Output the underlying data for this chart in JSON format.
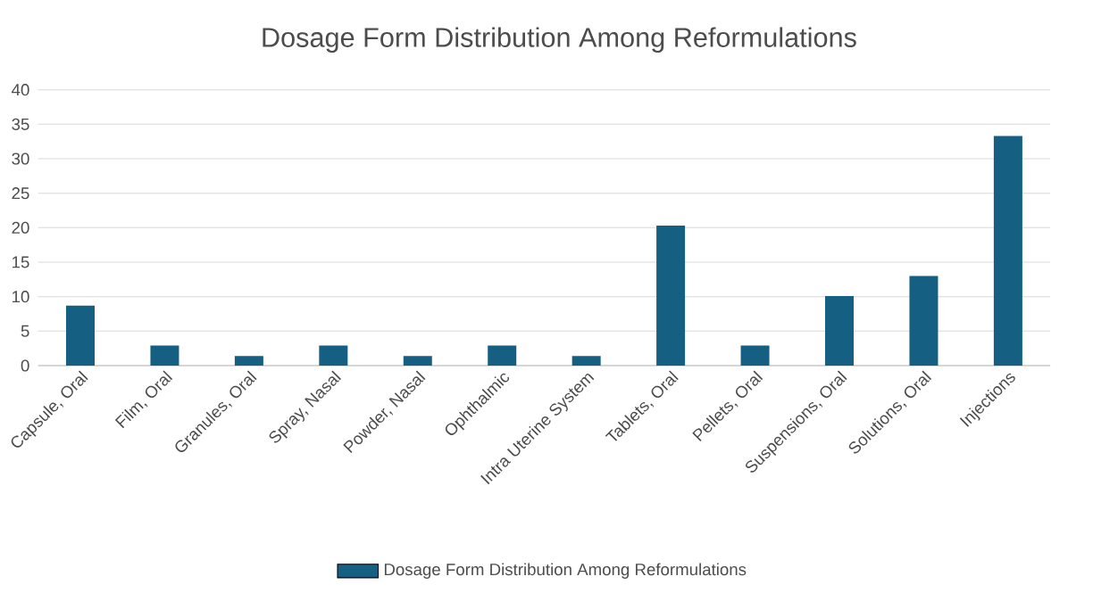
{
  "chart_data": {
    "type": "bar",
    "title": "Dosage Form Distribution Among Reformulations",
    "categories": [
      "Capsule, Oral",
      "Film, Oral",
      "Granules, Oral",
      "Spray, Nasal",
      "Powder, Nasal",
      "Ophthalmic",
      "Intra Uterine System",
      "Tablets, Oral",
      "Pellets, Oral",
      "Suspensions, Oral",
      "Solutions, Oral",
      "Injections"
    ],
    "series": [
      {
        "name": "Dosage Form Distribution Among Reformulations",
        "color": "#156082",
        "values": [
          8.7,
          2.9,
          1.4,
          2.9,
          1.4,
          2.9,
          1.4,
          20.3,
          2.9,
          10.1,
          13.0,
          33.3
        ]
      }
    ],
    "ylim": [
      0,
      40
    ],
    "yticks": [
      0,
      5,
      10,
      15,
      20,
      25,
      30,
      35,
      40
    ],
    "grid": "y",
    "legend": "bottom"
  }
}
